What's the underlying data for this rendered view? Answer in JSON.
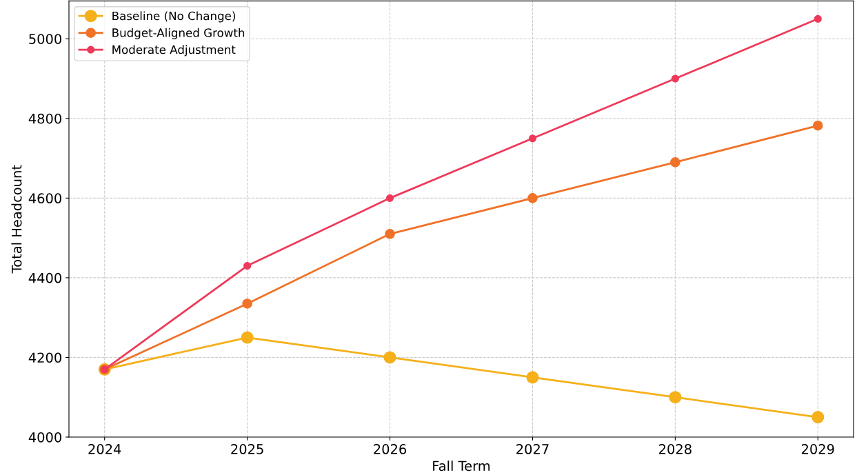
{
  "chart_data": {
    "type": "line",
    "xlabel": "Fall Term",
    "ylabel": "Total Headcount",
    "x": [
      2024,
      2025,
      2026,
      2027,
      2028,
      2029
    ],
    "series": [
      {
        "name": "Baseline (No Change)",
        "color": "#f5b01a",
        "values": [
          4170,
          4250,
          4200,
          4150,
          4100,
          4050
        ]
      },
      {
        "name": "Budget-Aligned Growth",
        "color": "#f07228",
        "values": [
          4170,
          4335,
          4510,
          4600,
          4690,
          4782
        ]
      },
      {
        "name": "Moderate Adjustment",
        "color": "#ee3a5a",
        "values": [
          4170,
          4430,
          4600,
          4750,
          4900,
          5050
        ]
      }
    ],
    "xlim": [
      2023.75,
      2029.25
    ],
    "xticks": [
      2024,
      2025,
      2026,
      2027,
      2028,
      2029
    ],
    "ylim": [
      4000,
      5095
    ],
    "yticks": [
      4000,
      4200,
      4400,
      4600,
      4800,
      5000
    ],
    "grid": true,
    "legend": "top left",
    "marker": "circle",
    "line_style": "solid"
  }
}
